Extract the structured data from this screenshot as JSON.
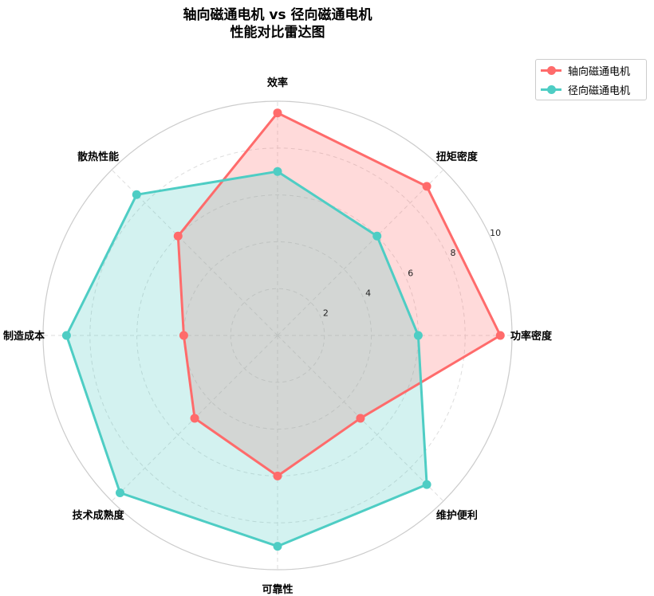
{
  "chart_data": {
    "type": "radar",
    "title": "轴向磁通电机 vs 径向磁通电机",
    "subtitle": "性能对比雷达图",
    "categories": [
      "效率",
      "扭矩密度",
      "功率密度",
      "维护便利",
      "可靠性",
      "技术成熟度",
      "制造成本",
      "散热性能"
    ],
    "rlim": [
      0,
      10
    ],
    "rticks": [
      "2",
      "4",
      "6",
      "8",
      "10"
    ],
    "rtick_values": [
      2,
      4,
      6,
      8,
      10
    ],
    "grid": true,
    "legend_placement": "top-right",
    "series": [
      {
        "name": "轴向磁通电机",
        "color": "#FF6B6B",
        "fill": "#FFD9D9",
        "values": [
          9.5,
          9,
          9.5,
          5,
          6,
          5,
          4,
          6
        ]
      },
      {
        "name": "径向磁通电机",
        "color": "#4ECDC4",
        "fill": "#D2F0EE",
        "values": [
          7,
          6,
          6,
          9,
          9,
          9.5,
          9,
          8.5
        ]
      }
    ]
  }
}
